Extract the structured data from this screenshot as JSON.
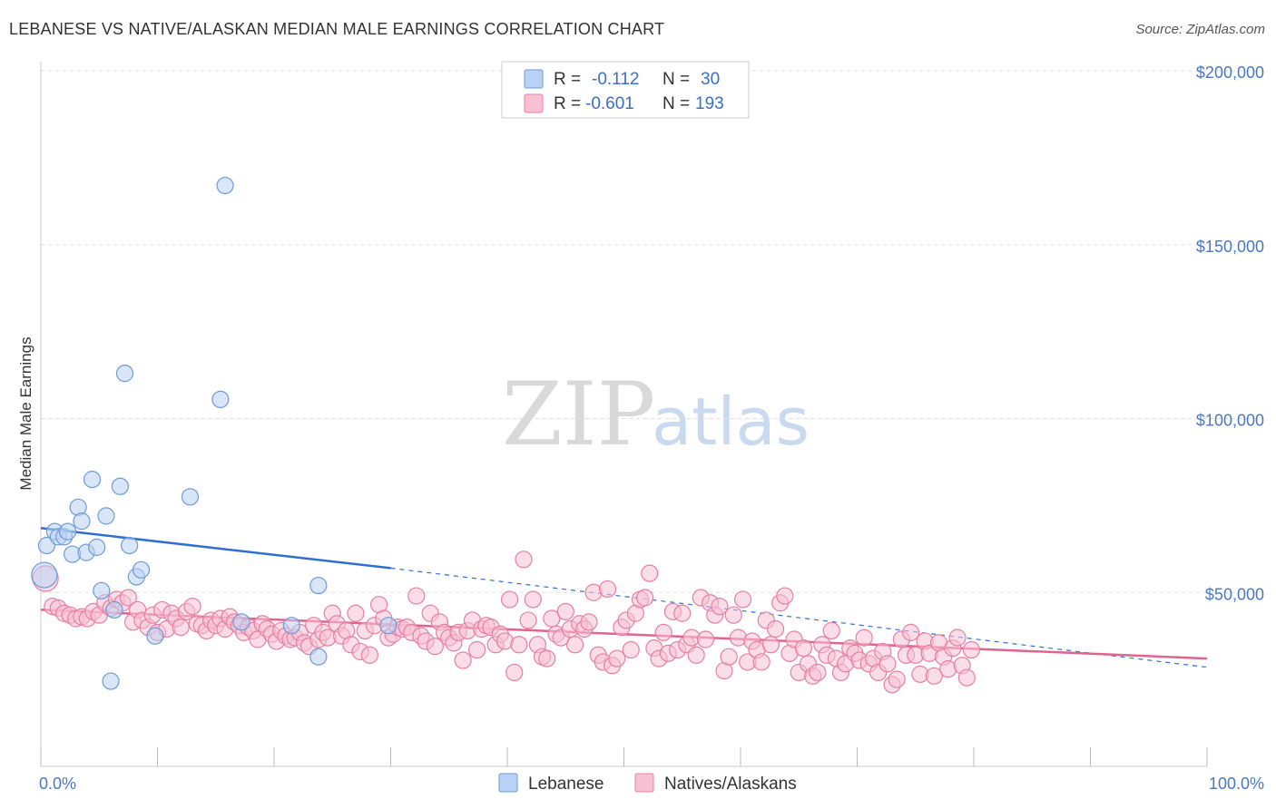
{
  "title": "LEBANESE VS NATIVE/ALASKAN MEDIAN MALE EARNINGS CORRELATION CHART",
  "source": "Source: ZipAtlas.com",
  "watermark": {
    "part1": "ZIP",
    "part2": "atlas"
  },
  "legend": {
    "rows": [
      {
        "r_label": "R =",
        "r_value": "-0.112",
        "n_label": "N =",
        "n_value": "30"
      },
      {
        "r_label": "R =",
        "r_value": "-0.601",
        "n_label": "N =",
        "n_value": "193"
      }
    ]
  },
  "bottom_legend": [
    "Lebanese",
    "Natives/Alaskans"
  ],
  "colors": {
    "lebanese_fill": "#b9d2f3",
    "lebanese_stroke": "#6e9ad8",
    "lebanese_line": "#2f6fd0",
    "natives_fill": "#f7c1d3",
    "natives_stroke": "#e77fa3",
    "natives_line": "#e0648f",
    "grid": "#dddddd",
    "tick_label": "#4a78c2"
  },
  "chart_data": {
    "type": "scatter",
    "title": "LEBANESE VS NATIVE/ALASKAN MEDIAN MALE EARNINGS CORRELATION CHART",
    "xlabel": "",
    "ylabel": "Median Male Earnings",
    "xlim": [
      0,
      100
    ],
    "ylim": [
      0,
      200000
    ],
    "x_tick_labels": [
      "0.0%",
      "100.0%"
    ],
    "y_ticks": [
      50000,
      100000,
      150000,
      200000
    ],
    "y_tick_labels": [
      "$50,000",
      "$100,000",
      "$150,000",
      "$200,000"
    ],
    "grid": true,
    "legend_position": "top-center",
    "series": [
      {
        "name": "Lebanese",
        "r": -0.112,
        "n": 30,
        "trend": {
          "x_start": 0,
          "y_start": 68500,
          "x_solid_end": 30,
          "y_solid_end": 57000,
          "x_end": 100,
          "y_end": 28500
        },
        "points": [
          [
            0.3,
            55000
          ],
          [
            0.5,
            63500
          ],
          [
            1.2,
            67500
          ],
          [
            1.5,
            66000
          ],
          [
            2.0,
            66000
          ],
          [
            2.3,
            67500
          ],
          [
            2.7,
            61000
          ],
          [
            3.2,
            74500
          ],
          [
            3.5,
            70500
          ],
          [
            3.9,
            61500
          ],
          [
            4.4,
            82500
          ],
          [
            4.8,
            63000
          ],
          [
            5.2,
            50500
          ],
          [
            5.6,
            72000
          ],
          [
            6.0,
            24500
          ],
          [
            6.3,
            45000
          ],
          [
            6.8,
            80500
          ],
          [
            7.2,
            113000
          ],
          [
            7.6,
            63500
          ],
          [
            8.2,
            54500
          ],
          [
            8.6,
            56500
          ],
          [
            9.8,
            37500
          ],
          [
            12.8,
            77500
          ],
          [
            15.4,
            105500
          ],
          [
            15.8,
            167000
          ],
          [
            17.2,
            41500
          ],
          [
            21.5,
            40500
          ],
          [
            23.8,
            31500
          ],
          [
            23.8,
            52000
          ],
          [
            29.8,
            40500
          ]
        ]
      },
      {
        "name": "Natives/Alaskans",
        "r": -0.601,
        "n": 193,
        "trend": {
          "x_start": 0,
          "y_start": 45000,
          "x_end": 100,
          "y_end": 31000
        },
        "points": [
          [
            0.4,
            54000
          ],
          [
            1.0,
            46000
          ],
          [
            1.5,
            45500
          ],
          [
            2.0,
            44000
          ],
          [
            2.5,
            43500
          ],
          [
            3.0,
            42500
          ],
          [
            3.5,
            43000
          ],
          [
            4.0,
            42500
          ],
          [
            4.5,
            44500
          ],
          [
            5.0,
            43500
          ],
          [
            5.5,
            47000
          ],
          [
            6.0,
            45500
          ],
          [
            6.5,
            48000
          ],
          [
            7.0,
            47000
          ],
          [
            7.5,
            48500
          ],
          [
            7.9,
            41500
          ],
          [
            8.3,
            45000
          ],
          [
            8.7,
            42000
          ],
          [
            9.2,
            40000
          ],
          [
            9.6,
            43500
          ],
          [
            10.0,
            38500
          ],
          [
            10.4,
            45000
          ],
          [
            10.8,
            39500
          ],
          [
            11.2,
            44000
          ],
          [
            11.6,
            42500
          ],
          [
            12.0,
            40000
          ],
          [
            12.5,
            44500
          ],
          [
            13.0,
            46000
          ],
          [
            13.4,
            41000
          ],
          [
            13.8,
            40500
          ],
          [
            14.2,
            39000
          ],
          [
            14.6,
            42000
          ],
          [
            15.0,
            40500
          ],
          [
            15.4,
            42500
          ],
          [
            15.8,
            39500
          ],
          [
            16.2,
            43000
          ],
          [
            16.6,
            41500
          ],
          [
            17.0,
            40500
          ],
          [
            17.4,
            38500
          ],
          [
            17.8,
            40000
          ],
          [
            18.2,
            39000
          ],
          [
            18.6,
            36500
          ],
          [
            19.0,
            41000
          ],
          [
            19.4,
            39500
          ],
          [
            19.8,
            38000
          ],
          [
            20.2,
            36000
          ],
          [
            20.6,
            39000
          ],
          [
            21.0,
            37500
          ],
          [
            21.4,
            36500
          ],
          [
            21.8,
            37000
          ],
          [
            22.2,
            38500
          ],
          [
            22.6,
            35500
          ],
          [
            23.0,
            34500
          ],
          [
            23.4,
            40500
          ],
          [
            23.8,
            36500
          ],
          [
            24.2,
            38500
          ],
          [
            24.6,
            37000
          ],
          [
            25.0,
            44000
          ],
          [
            25.4,
            41000
          ],
          [
            25.8,
            37500
          ],
          [
            26.2,
            39000
          ],
          [
            26.6,
            35000
          ],
          [
            27.0,
            44000
          ],
          [
            27.4,
            33000
          ],
          [
            27.8,
            39000
          ],
          [
            28.2,
            32000
          ],
          [
            28.6,
            40500
          ],
          [
            29.0,
            46500
          ],
          [
            29.4,
            42500
          ],
          [
            29.8,
            37000
          ],
          [
            30.2,
            38000
          ],
          [
            30.6,
            40000
          ],
          [
            31.0,
            39500
          ],
          [
            31.4,
            40000
          ],
          [
            31.8,
            38500
          ],
          [
            32.2,
            49000
          ],
          [
            32.6,
            37500
          ],
          [
            33.0,
            36000
          ],
          [
            33.4,
            44000
          ],
          [
            33.8,
            34500
          ],
          [
            34.2,
            41500
          ],
          [
            34.6,
            38500
          ],
          [
            35.0,
            37000
          ],
          [
            35.4,
            35500
          ],
          [
            35.8,
            38500
          ],
          [
            36.2,
            30500
          ],
          [
            36.6,
            39000
          ],
          [
            37.0,
            42000
          ],
          [
            37.4,
            33500
          ],
          [
            37.8,
            39500
          ],
          [
            38.2,
            40500
          ],
          [
            38.6,
            40000
          ],
          [
            39.0,
            35000
          ],
          [
            39.4,
            38000
          ],
          [
            39.8,
            36000
          ],
          [
            40.2,
            48000
          ],
          [
            40.6,
            27000
          ],
          [
            41.0,
            35000
          ],
          [
            41.4,
            59500
          ],
          [
            41.8,
            42000
          ],
          [
            42.2,
            48000
          ],
          [
            42.6,
            35000
          ],
          [
            43.0,
            31500
          ],
          [
            43.4,
            31000
          ],
          [
            43.8,
            42500
          ],
          [
            44.2,
            38000
          ],
          [
            44.6,
            37000
          ],
          [
            45.0,
            44500
          ],
          [
            45.4,
            39500
          ],
          [
            45.8,
            35000
          ],
          [
            46.2,
            41000
          ],
          [
            46.6,
            39500
          ],
          [
            47.0,
            41500
          ],
          [
            47.4,
            50000
          ],
          [
            47.8,
            32000
          ],
          [
            48.2,
            30000
          ],
          [
            48.6,
            51000
          ],
          [
            49.0,
            29000
          ],
          [
            49.4,
            31000
          ],
          [
            49.8,
            40000
          ],
          [
            50.2,
            42000
          ],
          [
            50.6,
            33500
          ],
          [
            51.0,
            44000
          ],
          [
            51.4,
            48000
          ],
          [
            51.8,
            48500
          ],
          [
            52.2,
            55500
          ],
          [
            52.6,
            34000
          ],
          [
            53.0,
            31000
          ],
          [
            53.4,
            38500
          ],
          [
            53.8,
            32500
          ],
          [
            54.2,
            44500
          ],
          [
            54.6,
            33500
          ],
          [
            55.0,
            44000
          ],
          [
            55.4,
            35000
          ],
          [
            55.8,
            37000
          ],
          [
            56.2,
            32000
          ],
          [
            56.6,
            48500
          ],
          [
            57.0,
            36500
          ],
          [
            57.4,
            47000
          ],
          [
            57.8,
            43500
          ],
          [
            58.2,
            46000
          ],
          [
            58.6,
            27500
          ],
          [
            59.0,
            31500
          ],
          [
            59.4,
            43500
          ],
          [
            59.8,
            37000
          ],
          [
            60.2,
            48000
          ],
          [
            60.6,
            30000
          ],
          [
            61.0,
            36000
          ],
          [
            61.4,
            33500
          ],
          [
            61.8,
            30000
          ],
          [
            62.2,
            42000
          ],
          [
            62.6,
            35000
          ],
          [
            63.0,
            39500
          ],
          [
            63.4,
            47000
          ],
          [
            63.8,
            49000
          ],
          [
            64.2,
            32500
          ],
          [
            64.6,
            36500
          ],
          [
            65.0,
            27000
          ],
          [
            65.4,
            34000
          ],
          [
            65.8,
            29500
          ],
          [
            66.2,
            26000
          ],
          [
            66.6,
            27000
          ],
          [
            67.0,
            35000
          ],
          [
            67.4,
            32000
          ],
          [
            67.8,
            39000
          ],
          [
            68.2,
            31000
          ],
          [
            68.6,
            27000
          ],
          [
            69.0,
            29500
          ],
          [
            69.4,
            34000
          ],
          [
            69.8,
            32500
          ],
          [
            70.2,
            30500
          ],
          [
            70.6,
            37000
          ],
          [
            71.0,
            29500
          ],
          [
            71.4,
            31000
          ],
          [
            71.8,
            27000
          ],
          [
            72.2,
            33000
          ],
          [
            72.6,
            29500
          ],
          [
            73.0,
            23500
          ],
          [
            73.4,
            25000
          ],
          [
            73.8,
            36500
          ],
          [
            74.2,
            32000
          ],
          [
            74.6,
            38500
          ],
          [
            75.0,
            32000
          ],
          [
            75.4,
            26500
          ],
          [
            75.8,
            36000
          ],
          [
            76.2,
            32500
          ],
          [
            76.6,
            26000
          ],
          [
            77.0,
            35500
          ],
          [
            77.4,
            31500
          ],
          [
            77.8,
            28000
          ],
          [
            78.2,
            34000
          ],
          [
            78.6,
            37000
          ],
          [
            79.0,
            29000
          ],
          [
            79.4,
            25500
          ],
          [
            79.8,
            33500
          ]
        ]
      }
    ]
  }
}
